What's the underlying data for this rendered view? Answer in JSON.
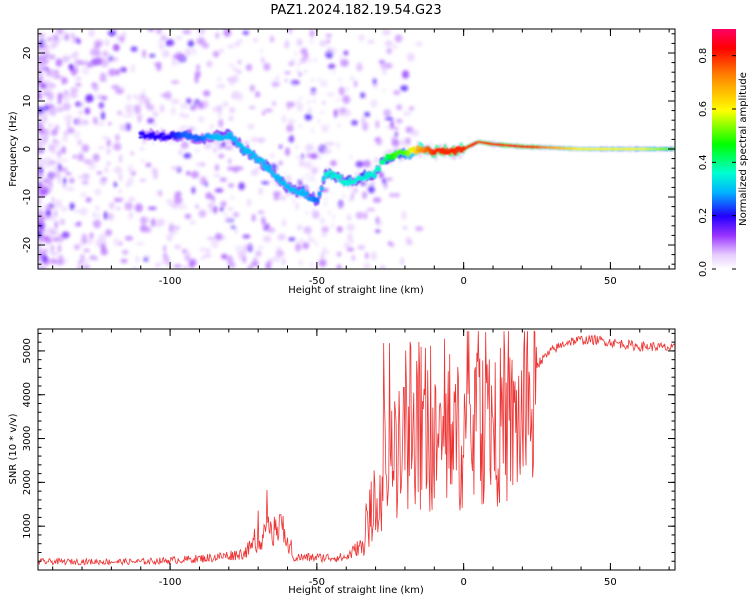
{
  "title": "PAZ1.2024.182.19.54.G23",
  "chart_data": [
    {
      "type": "heatmap",
      "xlabel": "Height of straight line (km)",
      "ylabel": "Frequency (Hz)",
      "xlim": [
        -145,
        72
      ],
      "ylim": [
        -25,
        25
      ],
      "xticks": [
        -100,
        -50,
        0,
        50
      ],
      "xtick_labels": [
        "-100",
        "-50",
        "0",
        "50"
      ],
      "yticks": [
        -20,
        -10,
        0,
        10,
        20
      ],
      "ytick_labels": [
        "-20",
        "-10",
        "0",
        "10",
        "20"
      ],
      "colorbar": {
        "label": "Normalized spectral amplitude",
        "range": [
          0.0,
          0.9
        ],
        "ticks": [
          0.0,
          0.2,
          0.4,
          0.6,
          0.8
        ],
        "tick_labels": [
          "0.0",
          "0.2",
          "0.4",
          "0.6",
          "0.8"
        ]
      },
      "ridge": {
        "x": [
          -110,
          -100,
          -95,
          -90,
          -85,
          -80,
          -75,
          -70,
          -65,
          -60,
          -55,
          -50,
          -47,
          -43,
          -40,
          -35,
          -30,
          -27,
          -23,
          -20,
          -15,
          -10,
          -5,
          0,
          5,
          10,
          20,
          30,
          40,
          50,
          60,
          72
        ],
        "y": [
          3,
          2.5,
          3,
          2,
          2.5,
          3,
          0,
          -2,
          -5,
          -8,
          -9,
          -11,
          -5,
          -6,
          -7,
          -6,
          -5,
          -2,
          -1,
          -1,
          0,
          -0.5,
          -0.5,
          0,
          1.5,
          1,
          0.5,
          0.3,
          0,
          0,
          0,
          0
        ],
        "amplitude": [
          0.2,
          0.2,
          0.25,
          0.25,
          0.3,
          0.3,
          0.3,
          0.3,
          0.3,
          0.3,
          0.3,
          0.25,
          0.35,
          0.35,
          0.35,
          0.35,
          0.35,
          0.4,
          0.5,
          0.5,
          0.7,
          0.8,
          0.8,
          0.8,
          0.8,
          0.8,
          0.85,
          0.7,
          0.6,
          0.6,
          0.6,
          0.5
        ]
      }
    },
    {
      "type": "line",
      "xlabel": "Height of straight line (km)",
      "ylabel": "SNR (10 * v/v)",
      "xlim": [
        -145,
        72
      ],
      "ylim": [
        0,
        5500
      ],
      "xticks": [
        -100,
        -50,
        0,
        50
      ],
      "xtick_labels": [
        "-100",
        "-50",
        "0",
        "50"
      ],
      "yticks": [
        1000,
        2000,
        3000,
        4000,
        5000
      ],
      "ytick_labels": [
        "1000",
        "2000",
        "3000",
        "4000",
        "5000"
      ],
      "color": "#ee3333",
      "envelope": {
        "x": [
          -145,
          -110,
          -95,
          -85,
          -75,
          -68,
          -62,
          -58,
          -50,
          -40,
          -35,
          -32,
          -28,
          -25,
          -20,
          -15,
          -10,
          -5,
          0,
          5,
          10,
          15,
          20,
          25,
          30,
          35,
          40,
          45,
          50,
          55,
          60,
          65,
          72
        ],
        "y": [
          200,
          200,
          250,
          300,
          400,
          800,
          1000,
          300,
          300,
          300,
          600,
          1500,
          2500,
          3000,
          3500,
          3300,
          3500,
          3800,
          3800,
          4000,
          4200,
          4000,
          4300,
          4700,
          5000,
          5200,
          5250,
          5250,
          5200,
          5150,
          5100,
          5100,
          5050
        ]
      }
    }
  ]
}
